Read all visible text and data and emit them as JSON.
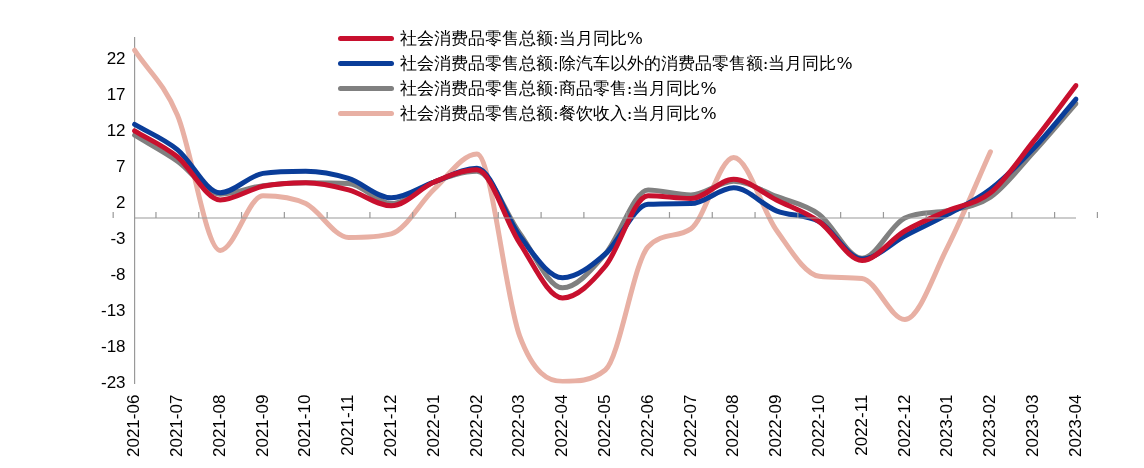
{
  "chart_data": {
    "type": "line",
    "categories": [
      "2021-06",
      "2021-07",
      "2021-08",
      "2021-09",
      "2021-10",
      "2021-11",
      "2021-12",
      "2022-01",
      "2022-02",
      "2022-03",
      "2022-04",
      "2022-05",
      "2022-06",
      "2022-07",
      "2022-08",
      "2022-09",
      "2022-10",
      "2022-11",
      "2022-12",
      "2023-01",
      "2023-02",
      "2023-03",
      "2023-04"
    ],
    "series": [
      {
        "name": "社会消费品零售总额:当月同比%",
        "color": "#c8102e",
        "values": [
          12.1,
          8.5,
          2.5,
          4.4,
          4.9,
          3.9,
          1.7,
          5,
          6.7,
          -3.5,
          -11.1,
          -6.7,
          3.1,
          2.7,
          5.4,
          2.5,
          -0.5,
          -5.9,
          -1.8,
          1,
          3.5,
          10.6,
          18.4
        ]
      },
      {
        "name": "社会消费品零售总额:除汽车以外的消费品零售额:当月同比%",
        "color": "#0a3d99",
        "values": [
          13,
          9.5,
          3.5,
          6.2,
          6.5,
          5.5,
          2.8,
          5,
          6.9,
          -2.5,
          -8.3,
          -5,
          1.9,
          2,
          4.2,
          1,
          -0.5,
          -5.7,
          -2.5,
          0.5,
          4,
          9.6,
          16.5
        ]
      },
      {
        "name": "社会消费品零售总额:商品零售:当月同比%",
        "color": "#808080",
        "values": [
          11.5,
          7.9,
          3.3,
          4.5,
          4.9,
          4.8,
          2,
          5,
          6.5,
          -2.1,
          -9.7,
          -5,
          3.9,
          3.2,
          5.1,
          3,
          0.5,
          -5.6,
          0,
          1,
          2.9,
          9.1,
          15.9
        ]
      },
      {
        "name": "社会消费品零售总额:餐饮收入:当月同比%",
        "color": "#e8b0a4",
        "values": [
          23.3,
          14.3,
          -4.5,
          3.1,
          2,
          -2.7,
          -2.2,
          4,
          8.9,
          -16.4,
          -22.7,
          -21.1,
          -4,
          -1.5,
          8.4,
          -1.7,
          -8.1,
          -8.4,
          -14.1,
          -4,
          9.2,
          null,
          null
        ]
      }
    ],
    "ylim": [
      -23,
      25
    ],
    "yticks": [
      -23,
      -18,
      -13,
      -8,
      -3,
      2,
      7,
      12,
      17,
      22
    ],
    "grid": false,
    "legend": "top",
    "marker": "none",
    "line_style": "solid"
  }
}
